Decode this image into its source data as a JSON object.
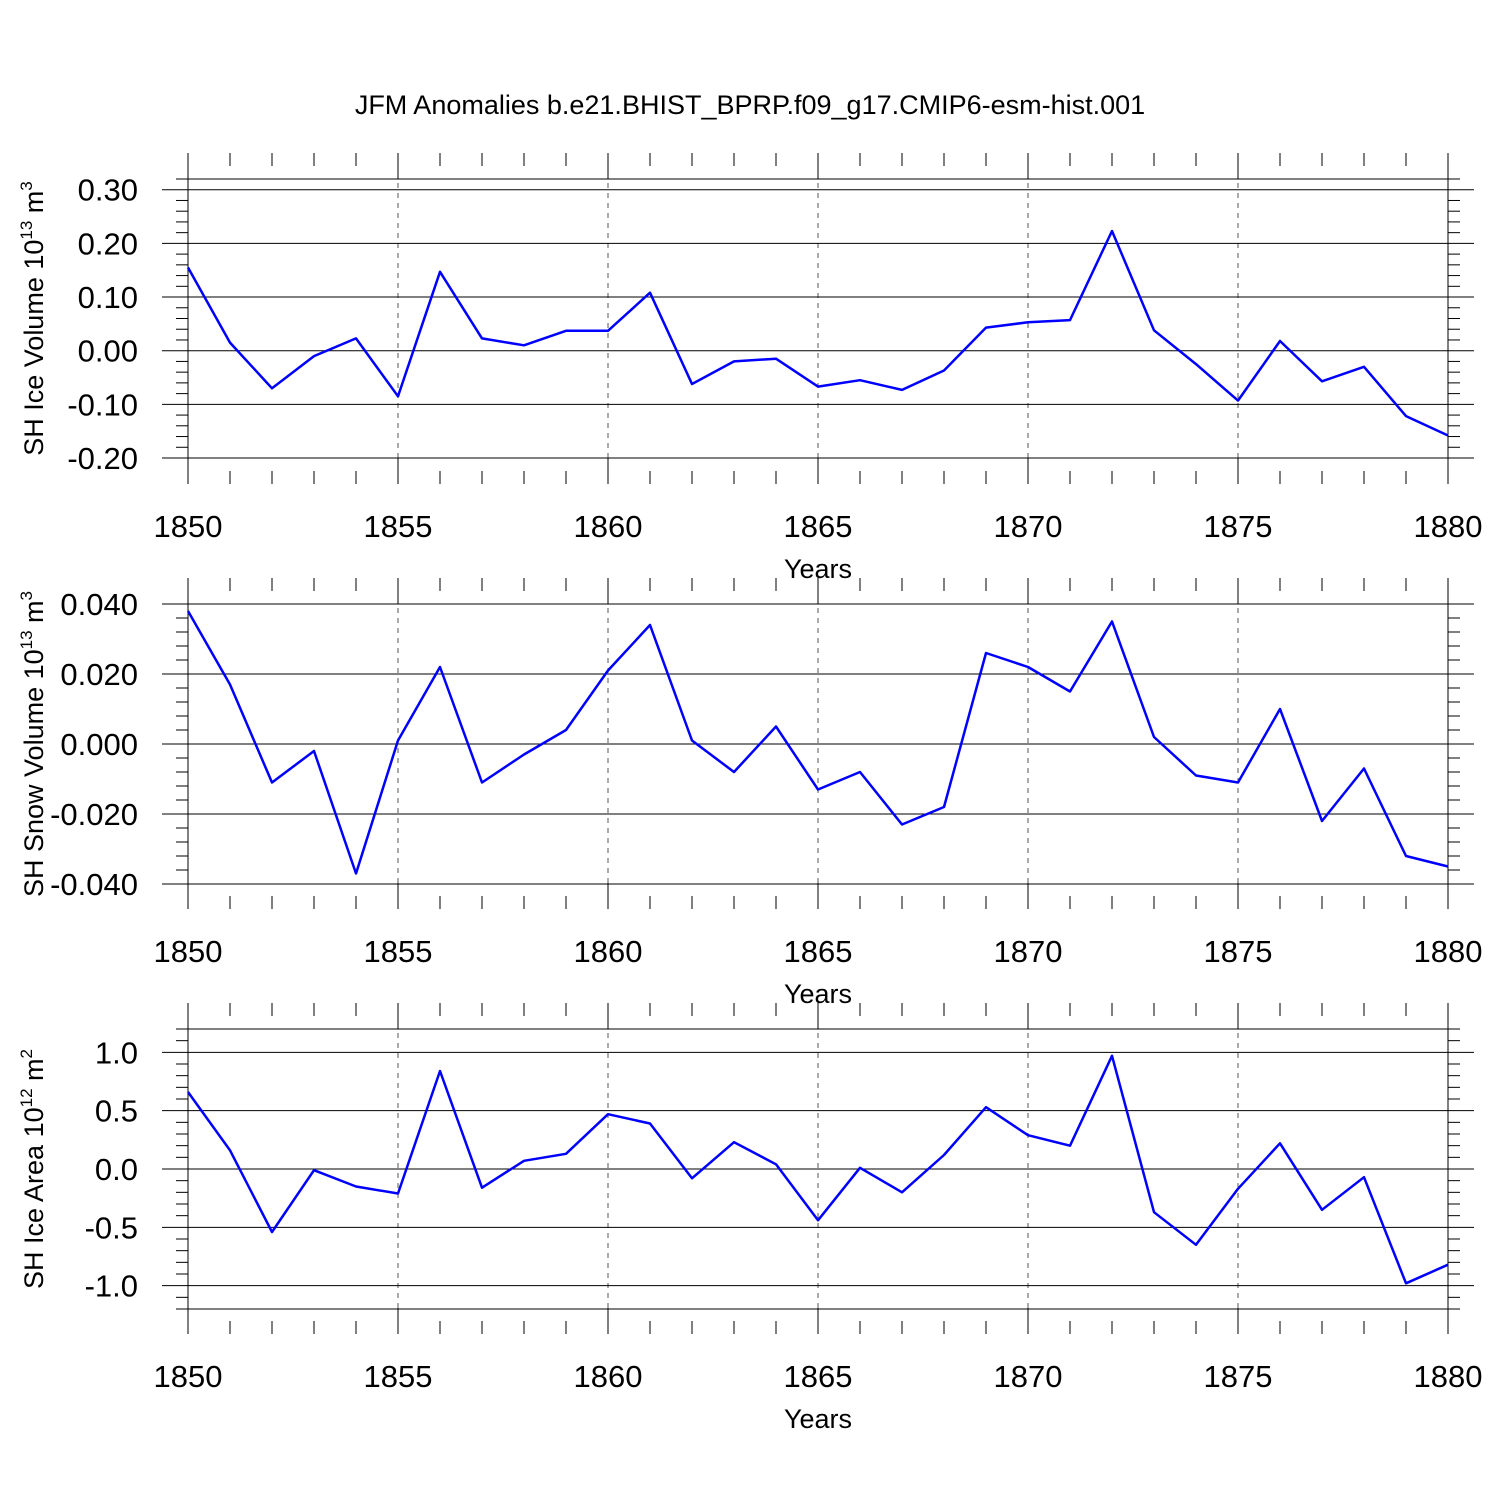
{
  "title": "JFM Anomalies b.e21.BHIST_BPRP.f09_g17.CMIP6-esm-hist.001",
  "colors": {
    "series": "#0000ff"
  },
  "chart_data": [
    {
      "type": "line",
      "ylabel": "SH Ice Volume 10",
      "ylabel_sup": "13",
      "ylabel_unit": " m",
      "ylabel_unit_sup": "3",
      "xlabel": "Years",
      "xlim": [
        1850,
        1880
      ],
      "ylim": [
        -0.2,
        0.32
      ],
      "yticks": [
        -0.2,
        -0.1,
        0.0,
        0.1,
        0.2,
        0.3
      ],
      "yticklabels": [
        "-0.20",
        "-0.10",
        "0.00",
        "0.10",
        "0.20",
        "0.30"
      ],
      "xticks": [
        1850,
        1855,
        1860,
        1865,
        1870,
        1875,
        1880
      ],
      "xticklabels": [
        "1850",
        "1855",
        "1860",
        "1865",
        "1870",
        "1875",
        "1880"
      ],
      "x": [
        1850,
        1851,
        1852,
        1853,
        1854,
        1855,
        1856,
        1857,
        1858,
        1859,
        1860,
        1861,
        1862,
        1863,
        1864,
        1865,
        1866,
        1867,
        1868,
        1869,
        1870,
        1871,
        1872,
        1873,
        1874,
        1875,
        1876,
        1877,
        1878,
        1879,
        1880
      ],
      "y": [
        0.155,
        0.015,
        -0.07,
        -0.01,
        0.023,
        -0.085,
        0.147,
        0.023,
        0.01,
        0.037,
        0.037,
        0.108,
        -0.062,
        -0.02,
        -0.015,
        -0.067,
        -0.055,
        -0.073,
        -0.037,
        0.043,
        0.053,
        0.057,
        0.223,
        0.038,
        -0.025,
        -0.093,
        0.018,
        -0.057,
        -0.03,
        -0.122,
        -0.158
      ]
    },
    {
      "type": "line",
      "ylabel": "SH Snow Volume 10",
      "ylabel_sup": "13",
      "ylabel_unit": " m",
      "ylabel_unit_sup": "3",
      "xlabel": "Years",
      "xlim": [
        1850,
        1880
      ],
      "ylim": [
        -0.04,
        0.04
      ],
      "yticks": [
        -0.04,
        -0.02,
        0.0,
        0.02,
        0.04
      ],
      "yticklabels": [
        "-0.040",
        "-0.020",
        "0.000",
        "0.020",
        "0.040"
      ],
      "xticks": [
        1850,
        1855,
        1860,
        1865,
        1870,
        1875,
        1880
      ],
      "xticklabels": [
        "1850",
        "1855",
        "1860",
        "1865",
        "1870",
        "1875",
        "1880"
      ],
      "x": [
        1850,
        1851,
        1852,
        1853,
        1854,
        1855,
        1856,
        1857,
        1858,
        1859,
        1860,
        1861,
        1862,
        1863,
        1864,
        1865,
        1866,
        1867,
        1868,
        1869,
        1870,
        1871,
        1872,
        1873,
        1874,
        1875,
        1876,
        1877,
        1878,
        1879,
        1880
      ],
      "y": [
        0.038,
        0.017,
        -0.011,
        -0.002,
        -0.037,
        0.001,
        0.022,
        -0.011,
        -0.003,
        0.004,
        0.021,
        0.034,
        0.001,
        -0.008,
        0.005,
        -0.013,
        -0.008,
        -0.023,
        -0.018,
        0.026,
        0.022,
        0.015,
        0.035,
        0.002,
        -0.009,
        -0.011,
        0.01,
        -0.022,
        -0.007,
        -0.032,
        -0.035
      ]
    },
    {
      "type": "line",
      "ylabel": "SH Ice Area 10",
      "ylabel_sup": "12",
      "ylabel_unit": " m",
      "ylabel_unit_sup": "2",
      "xlabel": "Years",
      "xlim": [
        1850,
        1880
      ],
      "ylim": [
        -1.2,
        1.2
      ],
      "yticks": [
        -1.0,
        -0.5,
        0.0,
        0.5,
        1.0
      ],
      "yticklabels": [
        "-1.0",
        "-0.5",
        "0.0",
        "0.5",
        "1.0"
      ],
      "xticks": [
        1850,
        1855,
        1860,
        1865,
        1870,
        1875,
        1880
      ],
      "xticklabels": [
        "1850",
        "1855",
        "1860",
        "1865",
        "1870",
        "1875",
        "1880"
      ],
      "x": [
        1850,
        1851,
        1852,
        1853,
        1854,
        1855,
        1856,
        1857,
        1858,
        1859,
        1860,
        1861,
        1862,
        1863,
        1864,
        1865,
        1866,
        1867,
        1868,
        1869,
        1870,
        1871,
        1872,
        1873,
        1874,
        1875,
        1876,
        1877,
        1878,
        1879,
        1880
      ],
      "y": [
        0.66,
        0.16,
        -0.54,
        -0.01,
        -0.15,
        -0.21,
        0.84,
        -0.16,
        0.07,
        0.13,
        0.47,
        0.39,
        -0.08,
        0.23,
        0.04,
        -0.44,
        0.01,
        -0.2,
        0.12,
        0.53,
        0.29,
        0.2,
        0.97,
        -0.37,
        -0.65,
        -0.17,
        0.22,
        -0.35,
        -0.07,
        -0.98,
        -0.82
      ]
    }
  ]
}
